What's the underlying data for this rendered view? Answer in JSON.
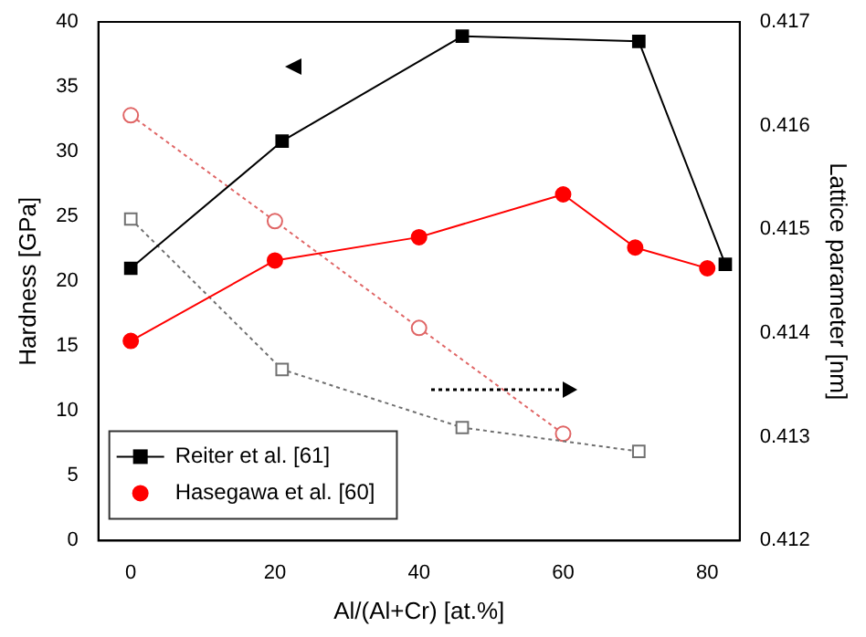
{
  "chart_data": {
    "type": "line",
    "xlabel": "Al/(Al+Cr) [at.%]",
    "ylabel": "Hardness [GPa]",
    "y2label": "Lattice parameter [nm]",
    "xlim": [
      -4.5,
      84.5
    ],
    "xticks": [
      0,
      20,
      40,
      60,
      80
    ],
    "ylim": [
      0,
      40
    ],
    "yticks": [
      0,
      5,
      10,
      15,
      20,
      25,
      30,
      35,
      40
    ],
    "y2lim": [
      0.412,
      0.417
    ],
    "y2ticks": [
      0.412,
      0.413,
      0.414,
      0.415,
      0.416,
      0.417
    ],
    "grid": false,
    "legend": "bottom left",
    "series": [
      {
        "name": "Reiter et al. [61]",
        "color": "#000000",
        "marker": "square",
        "line_style": "solid",
        "x": [
          0,
          21,
          46,
          70.5,
          82.5
        ],
        "values": [
          21,
          30.8,
          38.9,
          38.5,
          21.3
        ]
      },
      {
        "name": "Hasegawa et al. [60]",
        "color": "#ff0000",
        "marker": "circle",
        "line_style": "solid",
        "x": [
          0,
          20,
          40,
          60,
          70,
          80
        ],
        "values": [
          15.4,
          21.6,
          23.4,
          26.7,
          22.6,
          21.0
        ]
      },
      {
        "color": "#707070",
        "marker": "square",
        "line_style": "dotted",
        "axis": "y2",
        "x": [
          0,
          21,
          46,
          70.5
        ],
        "values": [
          0.4151,
          0.41365,
          0.41309,
          0.41286
        ]
      },
      {
        "color": "#e06666",
        "marker": "circle",
        "line_style": "dotted",
        "axis": "y2",
        "x": [
          0,
          20,
          40,
          60
        ],
        "values": [
          0.4161,
          0.41508,
          0.41405,
          0.41303
        ]
      }
    ]
  }
}
